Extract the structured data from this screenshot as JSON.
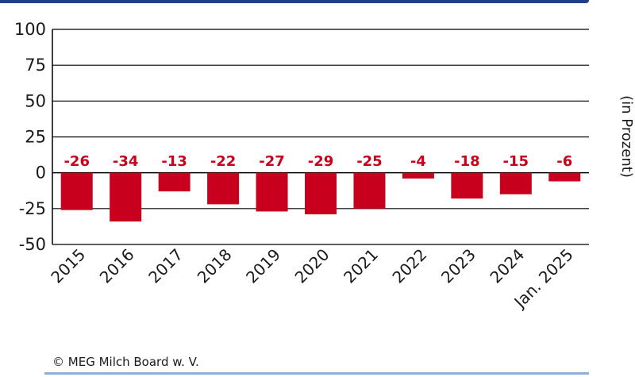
{
  "chart_data": {
    "type": "bar",
    "categories": [
      "2015",
      "2016",
      "2017",
      "2018",
      "2019",
      "2020",
      "2021",
      "2022",
      "2023",
      "2024",
      "Jan. 2025"
    ],
    "values": [
      -26,
      -34,
      -13,
      -22,
      -27,
      -29,
      -25,
      -4,
      -18,
      -15,
      -6
    ],
    "data_labels": [
      "-26",
      "-34",
      "-13",
      "-22",
      "-27",
      "-29",
      "-25",
      "-4",
      "-18",
      "-15",
      "-6"
    ],
    "ylim": [
      -50,
      100
    ],
    "yticks": [
      100,
      75,
      50,
      25,
      0,
      -25,
      -50
    ],
    "ytick_labels": [
      "100",
      "75",
      "50",
      "25",
      "0",
      "-25",
      "-50"
    ],
    "ylabel": "(in Prozent)",
    "grid": true,
    "bar_color": "#c8001e"
  },
  "footer": {
    "credit": "© MEG Milch Board w. V."
  },
  "colors": {
    "top_rule": "#1f3f8a",
    "bottom_rule": "#8ab0d8",
    "axis": "#000000"
  }
}
